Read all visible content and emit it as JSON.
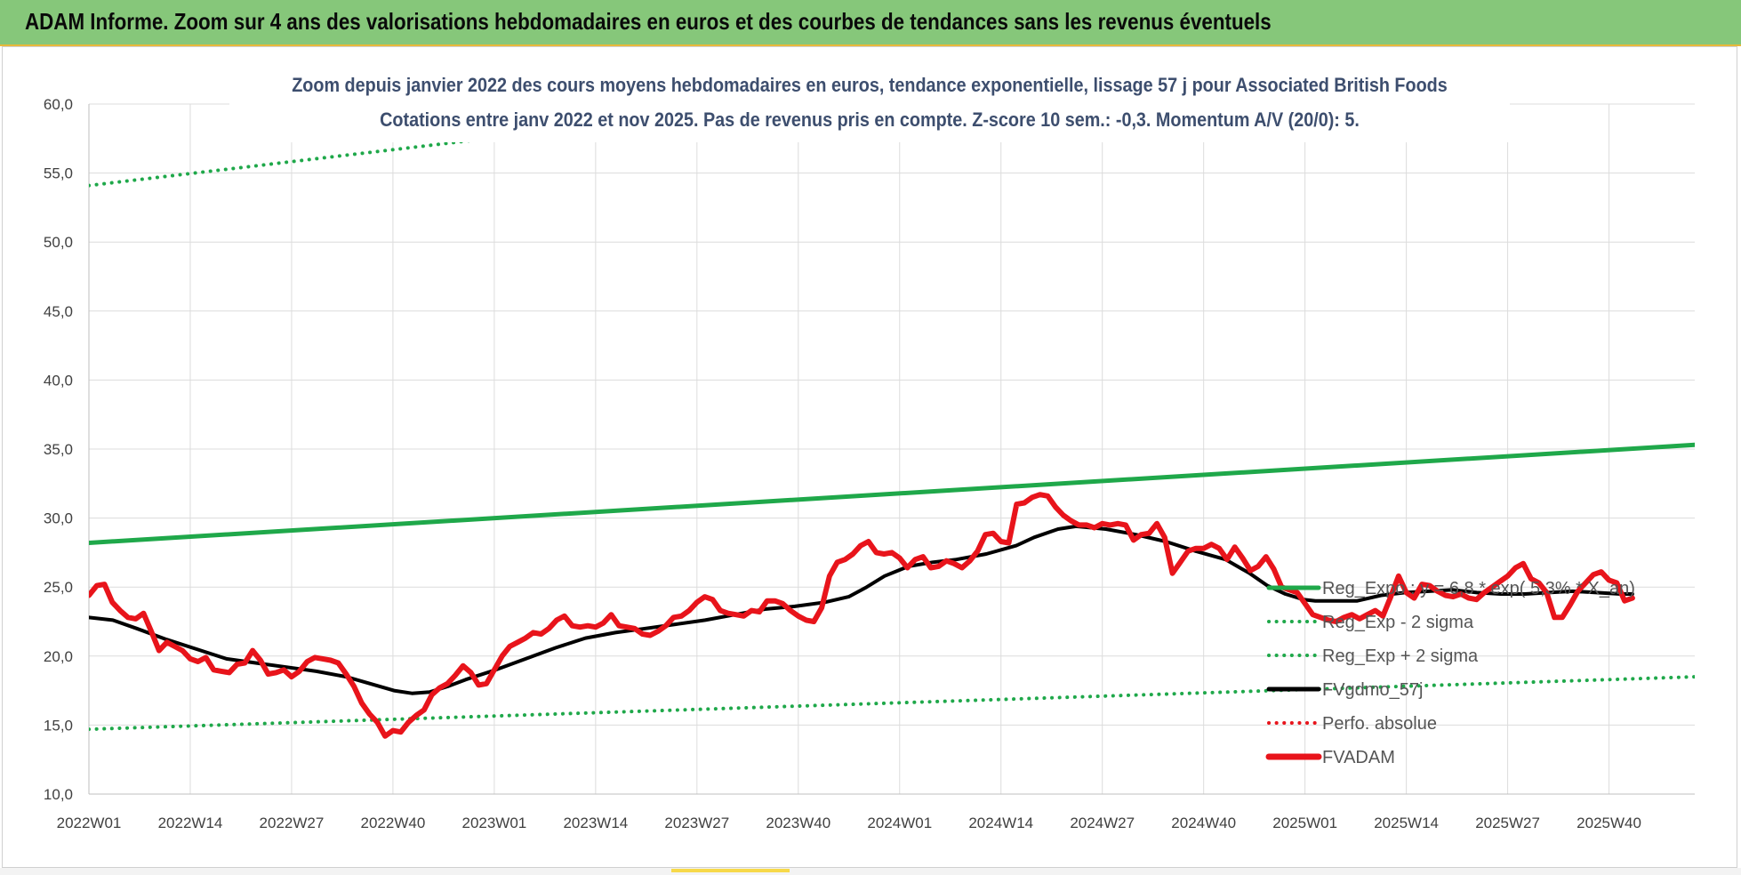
{
  "banner": {
    "title": "ADAM Informe. Zoom sur 4 ans des valorisations hebdomadaires en euros et des courbes de tendances sans les revenus éventuels",
    "color": "#86c77a"
  },
  "chart_data": {
    "type": "line",
    "title": "Zoom depuis janvier 2022 des cours moyens hebdomadaires en euros, tendance exponentielle, lissage 57 j pour Associated British Foods",
    "subtitle": "Cotations entre janv 2022 et nov 2025. Pas de revenus pris en compte. Z-score 10 sem.: -0,3. Momentum A/V (20/0): 5.",
    "xlabel": "",
    "ylabel": "",
    "ylim": [
      10,
      60
    ],
    "yticks": [
      "10,0",
      "15,0",
      "20,0",
      "25,0",
      "30,0",
      "35,0",
      "40,0",
      "45,0",
      "50,0",
      "55,0",
      "60,0"
    ],
    "x_tick_labels": [
      "2022W01",
      "2022W14",
      "2022W27",
      "2022W40",
      "2023W01",
      "2023W14",
      "2023W27",
      "2023W40",
      "2024W01",
      "2024W14",
      "2024W27",
      "2024W40",
      "2025W01",
      "2025W14",
      "2025W27",
      "2025W40"
    ],
    "grid": true,
    "legend_position": "right",
    "series": [
      {
        "name": "Reg_Expo : y = 6,8 * exp( 5,3% * X_an)",
        "style": "solid",
        "color": "#1fa84a",
        "values": [
          [
            0,
            28.2
          ],
          [
            206,
            35.3
          ]
        ]
      },
      {
        "name": "Reg_Exp - 2 sigma",
        "style": "dotted",
        "color": "#1fa84a",
        "values": [
          [
            0,
            14.7
          ],
          [
            206,
            18.5
          ]
        ]
      },
      {
        "name": "Reg_Exp + 2 sigma",
        "style": "dotted",
        "color": "#1fa84a",
        "values": [
          [
            0,
            54.1
          ],
          [
            206,
            67.8
          ]
        ]
      },
      {
        "name": "FVgdmo_57j",
        "style": "solid",
        "color": "#000000",
        "values": [
          [
            0,
            22.8
          ],
          [
            4,
            22.6
          ],
          [
            8,
            22.0
          ],
          [
            13,
            21.2
          ],
          [
            18,
            20.5
          ],
          [
            23,
            19.8
          ],
          [
            28,
            19.5
          ],
          [
            33,
            19.2
          ],
          [
            38,
            18.9
          ],
          [
            43,
            18.5
          ],
          [
            47,
            18.0
          ],
          [
            51,
            17.5
          ],
          [
            54,
            17.3
          ],
          [
            57,
            17.4
          ],
          [
            60,
            17.8
          ],
          [
            63,
            18.3
          ],
          [
            68,
            19.0
          ],
          [
            73,
            19.8
          ],
          [
            78,
            20.6
          ],
          [
            83,
            21.3
          ],
          [
            88,
            21.7
          ],
          [
            93,
            22.0
          ],
          [
            98,
            22.3
          ],
          [
            103,
            22.6
          ],
          [
            108,
            23.0
          ],
          [
            113,
            23.4
          ],
          [
            118,
            23.6
          ],
          [
            123,
            23.9
          ],
          [
            127,
            24.3
          ],
          [
            130,
            25.0
          ],
          [
            133,
            25.8
          ],
          [
            137,
            26.5
          ],
          [
            141,
            26.8
          ],
          [
            145,
            27.0
          ],
          [
            150,
            27.4
          ],
          [
            155,
            28.0
          ],
          [
            158,
            28.6
          ],
          [
            162,
            29.2
          ],
          [
            165,
            29.4
          ],
          [
            170,
            29.2
          ],
          [
            175,
            28.8
          ],
          [
            180,
            28.3
          ],
          [
            185,
            27.6
          ],
          [
            190,
            27.0
          ],
          [
            194,
            26.0
          ],
          [
            197,
            25.1
          ],
          [
            200,
            24.5
          ],
          [
            203,
            24.1
          ],
          [
            205,
            24.0
          ],
          [
            208,
            24.0
          ],
          [
            212,
            24.0
          ],
          [
            216,
            24.4
          ],
          [
            220,
            24.6
          ],
          [
            224,
            24.7
          ],
          [
            228,
            24.8
          ],
          [
            232,
            24.6
          ],
          [
            236,
            24.5
          ],
          [
            240,
            24.5
          ],
          [
            244,
            24.6
          ],
          [
            248,
            24.7
          ],
          [
            252,
            24.6
          ],
          [
            256,
            24.5
          ],
          [
            258,
            24.5
          ],
          [
            206,
            24.5
          ]
        ]
      },
      {
        "name": "Perfo. absolue",
        "style": "dotted",
        "color": "#e8141b",
        "values": []
      },
      {
        "name": "FVADAM",
        "style": "solid",
        "color": "#e8141b",
        "values": [
          [
            0,
            24.4
          ],
          [
            1,
            25.1
          ],
          [
            2,
            25.2
          ],
          [
            3,
            23.9
          ],
          [
            4,
            23.3
          ],
          [
            5,
            22.8
          ],
          [
            6,
            22.7
          ],
          [
            7,
            23.1
          ],
          [
            8,
            21.8
          ],
          [
            9,
            20.4
          ],
          [
            10,
            21.0
          ],
          [
            11,
            20.7
          ],
          [
            12,
            20.4
          ],
          [
            13,
            19.8
          ],
          [
            14,
            19.6
          ],
          [
            15,
            19.9
          ],
          [
            16,
            19.0
          ],
          [
            17,
            18.9
          ],
          [
            18,
            18.8
          ],
          [
            19,
            19.4
          ],
          [
            20,
            19.5
          ],
          [
            21,
            20.4
          ],
          [
            22,
            19.7
          ],
          [
            23,
            18.7
          ],
          [
            24,
            18.8
          ],
          [
            25,
            19.0
          ],
          [
            26,
            18.5
          ],
          [
            27,
            18.9
          ],
          [
            28,
            19.6
          ],
          [
            29,
            19.9
          ],
          [
            30,
            19.8
          ],
          [
            31,
            19.7
          ],
          [
            32,
            19.5
          ],
          [
            33,
            18.7
          ],
          [
            34,
            17.8
          ],
          [
            35,
            16.6
          ],
          [
            36,
            15.8
          ],
          [
            37,
            15.2
          ],
          [
            38,
            14.2
          ],
          [
            39,
            14.6
          ],
          [
            40,
            14.5
          ],
          [
            41,
            15.2
          ],
          [
            42,
            15.7
          ],
          [
            43,
            16.1
          ],
          [
            44,
            17.2
          ],
          [
            45,
            17.7
          ],
          [
            46,
            18.0
          ],
          [
            47,
            18.6
          ],
          [
            48,
            19.3
          ],
          [
            49,
            18.8
          ],
          [
            50,
            17.9
          ],
          [
            51,
            18.0
          ],
          [
            52,
            19.0
          ],
          [
            53,
            20.0
          ],
          [
            54,
            20.7
          ],
          [
            55,
            21.0
          ],
          [
            56,
            21.3
          ],
          [
            57,
            21.7
          ],
          [
            58,
            21.6
          ],
          [
            59,
            22.0
          ],
          [
            60,
            22.6
          ],
          [
            61,
            22.9
          ],
          [
            62,
            22.2
          ],
          [
            63,
            22.1
          ],
          [
            64,
            22.2
          ],
          [
            65,
            22.1
          ],
          [
            66,
            22.4
          ],
          [
            67,
            23.0
          ],
          [
            68,
            22.2
          ],
          [
            69,
            22.1
          ],
          [
            70,
            22.0
          ],
          [
            71,
            21.6
          ],
          [
            72,
            21.5
          ],
          [
            73,
            21.8
          ],
          [
            74,
            22.2
          ],
          [
            75,
            22.8
          ],
          [
            76,
            22.9
          ],
          [
            77,
            23.3
          ],
          [
            78,
            23.9
          ],
          [
            79,
            24.3
          ],
          [
            80,
            24.1
          ],
          [
            81,
            23.3
          ],
          [
            82,
            23.1
          ],
          [
            83,
            23.0
          ],
          [
            84,
            22.9
          ],
          [
            85,
            23.3
          ],
          [
            86,
            23.2
          ],
          [
            87,
            24.0
          ],
          [
            88,
            24.0
          ],
          [
            89,
            23.8
          ],
          [
            90,
            23.3
          ],
          [
            91,
            22.9
          ],
          [
            92,
            22.6
          ],
          [
            93,
            22.5
          ],
          [
            94,
            23.5
          ],
          [
            95,
            25.8
          ],
          [
            96,
            26.8
          ],
          [
            97,
            27.0
          ],
          [
            98,
            27.4
          ],
          [
            99,
            28.0
          ],
          [
            100,
            28.3
          ],
          [
            101,
            27.5
          ],
          [
            102,
            27.4
          ],
          [
            103,
            27.5
          ],
          [
            104,
            27.1
          ],
          [
            105,
            26.4
          ],
          [
            106,
            27.0
          ],
          [
            107,
            27.2
          ],
          [
            108,
            26.4
          ],
          [
            109,
            26.5
          ],
          [
            110,
            26.9
          ],
          [
            111,
            26.7
          ],
          [
            112,
            26.4
          ],
          [
            113,
            26.9
          ],
          [
            114,
            27.6
          ],
          [
            115,
            28.8
          ],
          [
            116,
            28.9
          ],
          [
            117,
            28.3
          ],
          [
            118,
            28.2
          ],
          [
            119,
            31.0
          ],
          [
            120,
            31.1
          ],
          [
            121,
            31.5
          ],
          [
            122,
            31.7
          ],
          [
            123,
            31.6
          ],
          [
            124,
            30.8
          ],
          [
            125,
            30.2
          ],
          [
            126,
            29.8
          ],
          [
            127,
            29.5
          ],
          [
            128,
            29.5
          ],
          [
            129,
            29.3
          ],
          [
            130,
            29.6
          ],
          [
            131,
            29.5
          ],
          [
            132,
            29.6
          ],
          [
            133,
            29.5
          ],
          [
            134,
            28.4
          ],
          [
            135,
            28.8
          ],
          [
            136,
            28.9
          ],
          [
            137,
            29.6
          ],
          [
            138,
            28.6
          ],
          [
            139,
            26.0
          ],
          [
            140,
            26.8
          ],
          [
            141,
            27.6
          ],
          [
            142,
            27.8
          ],
          [
            143,
            27.8
          ],
          [
            144,
            28.1
          ],
          [
            145,
            27.8
          ],
          [
            146,
            27.0
          ],
          [
            147,
            27.9
          ],
          [
            148,
            27.1
          ],
          [
            149,
            26.2
          ],
          [
            150,
            26.5
          ],
          [
            151,
            27.2
          ],
          [
            152,
            26.3
          ],
          [
            153,
            25.0
          ],
          [
            154,
            24.8
          ],
          [
            155,
            24.6
          ],
          [
            156,
            23.8
          ],
          [
            157,
            23.0
          ],
          [
            158,
            22.8
          ],
          [
            159,
            22.6
          ],
          [
            160,
            22.5
          ],
          [
            161,
            22.8
          ],
          [
            162,
            23.0
          ],
          [
            163,
            22.7
          ],
          [
            164,
            23.0
          ],
          [
            165,
            23.3
          ],
          [
            166,
            22.9
          ],
          [
            167,
            24.3
          ],
          [
            168,
            25.8
          ],
          [
            169,
            24.6
          ],
          [
            170,
            24.2
          ],
          [
            171,
            25.2
          ],
          [
            172,
            25.1
          ],
          [
            173,
            24.7
          ],
          [
            174,
            24.4
          ],
          [
            175,
            24.3
          ],
          [
            176,
            24.5
          ],
          [
            177,
            24.2
          ],
          [
            178,
            24.1
          ],
          [
            179,
            24.6
          ],
          [
            180,
            25.0
          ],
          [
            181,
            25.4
          ],
          [
            182,
            25.8
          ],
          [
            183,
            26.4
          ],
          [
            184,
            26.7
          ],
          [
            185,
            25.6
          ],
          [
            186,
            25.3
          ],
          [
            187,
            24.6
          ],
          [
            188,
            22.8
          ],
          [
            189,
            22.8
          ],
          [
            190,
            23.7
          ],
          [
            191,
            24.7
          ],
          [
            192,
            25.3
          ],
          [
            193,
            25.9
          ],
          [
            194,
            26.1
          ],
          [
            195,
            25.5
          ],
          [
            196,
            25.3
          ],
          [
            197,
            24.0
          ],
          [
            198,
            24.2
          ]
        ]
      }
    ],
    "legend": [
      {
        "label": "Reg_Expo : y = 6,8 * exp( 5,3% * X_an)",
        "style": "solid",
        "color": "#1fa84a"
      },
      {
        "label": "Reg_Exp - 2 sigma",
        "style": "dotted",
        "color": "#1fa84a"
      },
      {
        "label": "Reg_Exp + 2 sigma",
        "style": "dotted",
        "color": "#1fa84a"
      },
      {
        "label": "FVgdmo_57j",
        "style": "solid",
        "color": "#000000"
      },
      {
        "label": "Perfo. absolue",
        "style": "dotted",
        "color": "#e8141b"
      },
      {
        "label": "FVADAM",
        "style": "solid",
        "color": "#e8141b"
      }
    ]
  }
}
